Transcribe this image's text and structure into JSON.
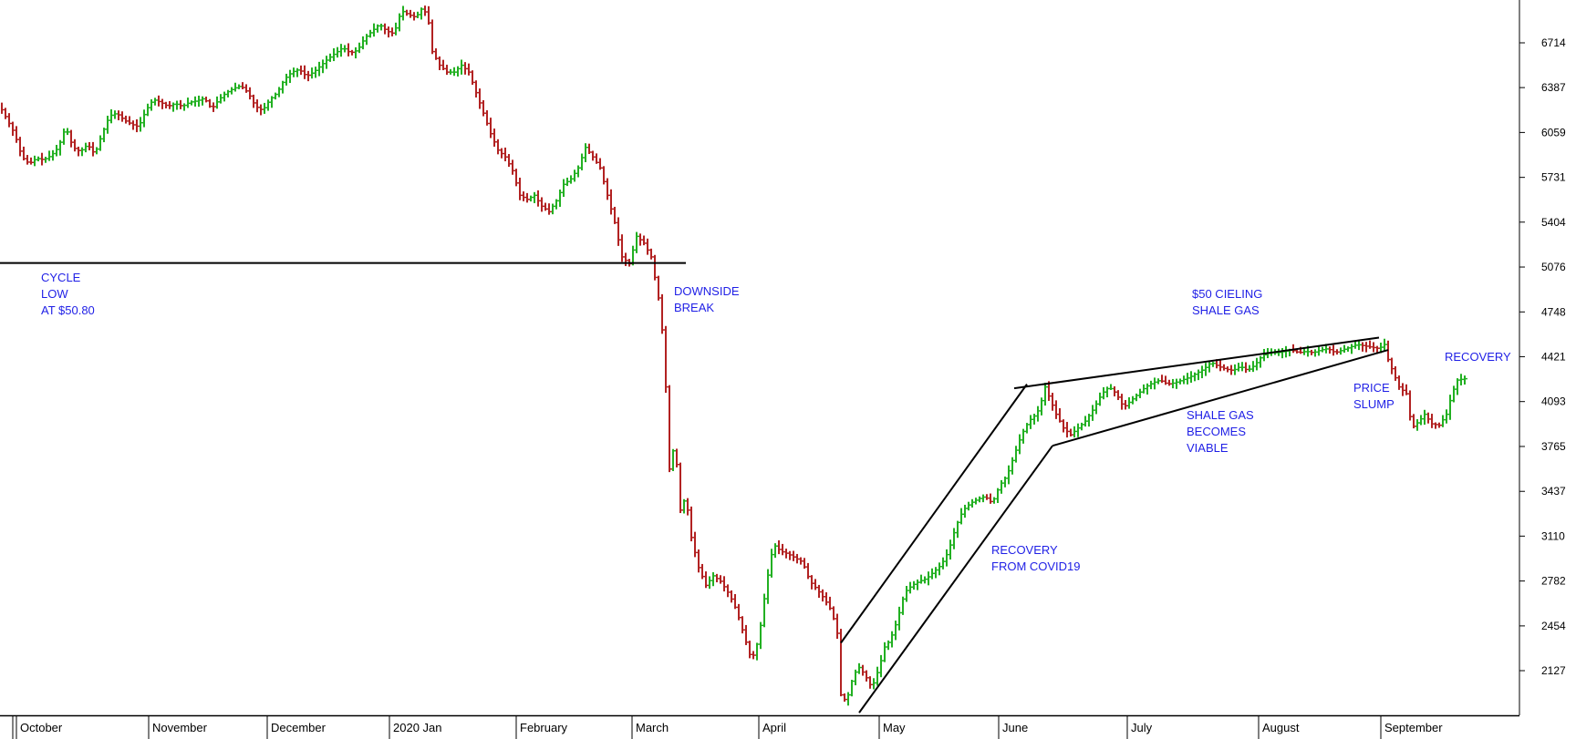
{
  "chart_data": {
    "type": "bar",
    "subtype": "ohlc-bar",
    "title": "",
    "xlabel": "",
    "ylabel": "",
    "ylim": [
      1800,
      7000
    ],
    "y_ticks": [
      2127,
      2454,
      2782,
      3110,
      3437,
      3765,
      4093,
      4421,
      4748,
      5076,
      5404,
      5731,
      6059,
      6387,
      6714
    ],
    "x_labels": [
      "October",
      "November",
      "December",
      "2020 Jan",
      "February",
      "March",
      "April",
      "May",
      "June",
      "July",
      "August",
      "September"
    ],
    "up_color": "#22b022",
    "down_color": "#b22222",
    "grid": false,
    "annotation_texts": {
      "cycle_low": [
        "CYCLE",
        "LOW",
        "AT $50.80"
      ],
      "downside_break": [
        "DOWNSIDE",
        "BREAK"
      ],
      "ceiling": [
        "$50 CIELING",
        "SHALE GAS"
      ],
      "recovery_right": [
        "RECOVERY"
      ],
      "price_slump": [
        "PRICE",
        "SLUMP"
      ],
      "shale_viable": [
        "SHALE GAS",
        "BECOMES",
        "VIABLE"
      ],
      "recovery_covid": [
        "RECOVERY",
        "FROM COVID19"
      ]
    },
    "anchors": [
      [
        0,
        6250
      ],
      [
        8,
        6150
      ],
      [
        16,
        6050
      ],
      [
        24,
        5880
      ],
      [
        32,
        5830
      ],
      [
        40,
        5870
      ],
      [
        48,
        5860
      ],
      [
        56,
        5890
      ],
      [
        64,
        5950
      ],
      [
        72,
        6100
      ],
      [
        80,
        5950
      ],
      [
        88,
        5920
      ],
      [
        96,
        5970
      ],
      [
        104,
        5900
      ],
      [
        112,
        6050
      ],
      [
        120,
        6180
      ],
      [
        128,
        6200
      ],
      [
        136,
        6150
      ],
      [
        144,
        6120
      ],
      [
        152,
        6100
      ],
      [
        160,
        6220
      ],
      [
        168,
        6300
      ],
      [
        176,
        6280
      ],
      [
        184,
        6250
      ],
      [
        192,
        6270
      ],
      [
        200,
        6250
      ],
      [
        208,
        6280
      ],
      [
        216,
        6290
      ],
      [
        224,
        6310
      ],
      [
        232,
        6230
      ],
      [
        240,
        6300
      ],
      [
        248,
        6350
      ],
      [
        256,
        6380
      ],
      [
        264,
        6400
      ],
      [
        272,
        6350
      ],
      [
        280,
        6250
      ],
      [
        288,
        6220
      ],
      [
        296,
        6300
      ],
      [
        304,
        6350
      ],
      [
        312,
        6450
      ],
      [
        320,
        6500
      ],
      [
        328,
        6520
      ],
      [
        336,
        6470
      ],
      [
        344,
        6500
      ],
      [
        352,
        6550
      ],
      [
        360,
        6600
      ],
      [
        368,
        6640
      ],
      [
        376,
        6680
      ],
      [
        384,
        6640
      ],
      [
        392,
        6660
      ],
      [
        400,
        6750
      ],
      [
        408,
        6800
      ],
      [
        416,
        6850
      ],
      [
        424,
        6800
      ],
      [
        432,
        6780
      ],
      [
        440,
        6950
      ],
      [
        448,
        6920
      ],
      [
        456,
        6900
      ],
      [
        464,
        6980
      ],
      [
        470,
        6860
      ],
      [
        474,
        6650
      ],
      [
        482,
        6550
      ],
      [
        490,
        6500
      ],
      [
        498,
        6500
      ],
      [
        506,
        6550
      ],
      [
        514,
        6500
      ],
      [
        522,
        6350
      ],
      [
        530,
        6200
      ],
      [
        538,
        6050
      ],
      [
        546,
        5930
      ],
      [
        554,
        5880
      ],
      [
        562,
        5780
      ],
      [
        570,
        5600
      ],
      [
        578,
        5570
      ],
      [
        586,
        5600
      ],
      [
        594,
        5520
      ],
      [
        602,
        5480
      ],
      [
        610,
        5560
      ],
      [
        618,
        5680
      ],
      [
        626,
        5720
      ],
      [
        634,
        5800
      ],
      [
        642,
        5950
      ],
      [
        650,
        5880
      ],
      [
        658,
        5800
      ],
      [
        666,
        5600
      ],
      [
        674,
        5400
      ],
      [
        682,
        5150
      ],
      [
        690,
        5100
      ],
      [
        698,
        5300
      ],
      [
        706,
        5250
      ],
      [
        714,
        5150
      ],
      [
        722,
        4850
      ],
      [
        728,
        4500
      ],
      [
        734,
        3600
      ],
      [
        740,
        3800
      ],
      [
        746,
        3300
      ],
      [
        752,
        3400
      ],
      [
        758,
        3100
      ],
      [
        766,
        2880
      ],
      [
        774,
        2750
      ],
      [
        782,
        2820
      ],
      [
        790,
        2780
      ],
      [
        800,
        2680
      ],
      [
        808,
        2560
      ],
      [
        816,
        2380
      ],
      [
        824,
        2200
      ],
      [
        832,
        2360
      ],
      [
        840,
        2750
      ],
      [
        848,
        3050
      ],
      [
        856,
        3000
      ],
      [
        864,
        2980
      ],
      [
        872,
        2950
      ],
      [
        880,
        2920
      ],
      [
        888,
        2780
      ],
      [
        896,
        2720
      ],
      [
        904,
        2650
      ],
      [
        912,
        2560
      ],
      [
        918,
        2400
      ],
      [
        922,
        1950
      ],
      [
        928,
        1900
      ],
      [
        936,
        2100
      ],
      [
        942,
        2150
      ],
      [
        948,
        2100
      ],
      [
        956,
        2000
      ],
      [
        964,
        2150
      ],
      [
        970,
        2300
      ],
      [
        976,
        2350
      ],
      [
        984,
        2500
      ],
      [
        992,
        2700
      ],
      [
        1000,
        2750
      ],
      [
        1008,
        2780
      ],
      [
        1016,
        2800
      ],
      [
        1024,
        2850
      ],
      [
        1032,
        2900
      ],
      [
        1040,
        3000
      ],
      [
        1048,
        3180
      ],
      [
        1056,
        3300
      ],
      [
        1064,
        3350
      ],
      [
        1072,
        3380
      ],
      [
        1080,
        3400
      ],
      [
        1088,
        3350
      ],
      [
        1096,
        3480
      ],
      [
        1104,
        3550
      ],
      [
        1112,
        3700
      ],
      [
        1120,
        3850
      ],
      [
        1128,
        3950
      ],
      [
        1136,
        4000
      ],
      [
        1140,
        4050
      ],
      [
        1146,
        4200
      ],
      [
        1152,
        4100
      ],
      [
        1158,
        4000
      ],
      [
        1166,
        3900
      ],
      [
        1174,
        3850
      ],
      [
        1182,
        3900
      ],
      [
        1190,
        3950
      ],
      [
        1200,
        4050
      ],
      [
        1208,
        4150
      ],
      [
        1216,
        4200
      ],
      [
        1224,
        4150
      ],
      [
        1232,
        4050
      ],
      [
        1240,
        4100
      ],
      [
        1248,
        4150
      ],
      [
        1256,
        4200
      ],
      [
        1264,
        4230
      ],
      [
        1272,
        4250
      ],
      [
        1280,
        4220
      ],
      [
        1288,
        4230
      ],
      [
        1296,
        4250
      ],
      [
        1304,
        4270
      ],
      [
        1312,
        4300
      ],
      [
        1320,
        4330
      ],
      [
        1328,
        4380
      ],
      [
        1336,
        4350
      ],
      [
        1344,
        4330
      ],
      [
        1352,
        4320
      ],
      [
        1360,
        4350
      ],
      [
        1368,
        4320
      ],
      [
        1376,
        4360
      ],
      [
        1384,
        4430
      ],
      [
        1392,
        4450
      ],
      [
        1400,
        4450
      ],
      [
        1408,
        4460
      ],
      [
        1416,
        4470
      ],
      [
        1424,
        4450
      ],
      [
        1432,
        4460
      ],
      [
        1440,
        4450
      ],
      [
        1448,
        4470
      ],
      [
        1456,
        4480
      ],
      [
        1464,
        4450
      ],
      [
        1472,
        4470
      ],
      [
        1480,
        4490
      ],
      [
        1488,
        4510
      ],
      [
        1496,
        4500
      ],
      [
        1504,
        4490
      ],
      [
        1512,
        4480
      ],
      [
        1518,
        4510
      ],
      [
        1522,
        4400
      ],
      [
        1528,
        4300
      ],
      [
        1534,
        4200
      ],
      [
        1542,
        4150
      ],
      [
        1548,
        3900
      ],
      [
        1556,
        3950
      ],
      [
        1562,
        4000
      ],
      [
        1570,
        3930
      ],
      [
        1578,
        3920
      ],
      [
        1586,
        4000
      ],
      [
        1592,
        4150
      ],
      [
        1598,
        4250
      ],
      [
        1606,
        4260
      ]
    ]
  }
}
